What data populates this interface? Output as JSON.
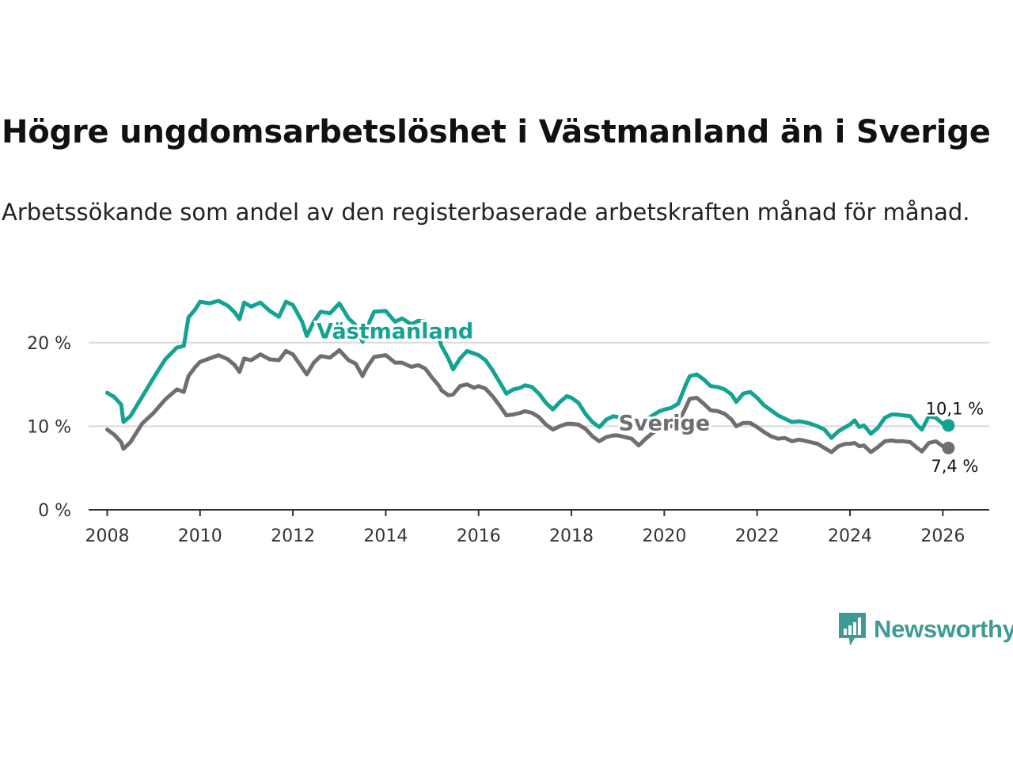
{
  "header": {
    "title": "Högre ungdomsarbetslöshet i Västmanland än i Sverige",
    "subtitle": "Arbetssökande som andel av den registerbaserade arbetskraften månad för månad."
  },
  "brand": {
    "name": "Newsworthy",
    "color": "#3e9a95"
  },
  "chart_data": {
    "type": "line",
    "title": "Högre ungdomsarbetslöshet i Västmanland än i Sverige",
    "subtitle": "Arbetssökande som andel av den registerbaserade arbetskraften månad för månad.",
    "xlabel": "",
    "ylabel": "",
    "xlim": [
      2007.6,
      2027.0
    ],
    "ylim": [
      0,
      25
    ],
    "x_ticks": [
      2008,
      2010,
      2012,
      2014,
      2016,
      2018,
      2020,
      2022,
      2024,
      2026
    ],
    "x_tick_labels": [
      "2008",
      "2010",
      "2012",
      "2014",
      "2016",
      "2018",
      "2020",
      "2022",
      "2024",
      "2026"
    ],
    "y_ticks": [
      0,
      10,
      20
    ],
    "y_tick_labels": [
      "0 %",
      "10 %",
      "20 %"
    ],
    "grid": "horizontal",
    "series": [
      {
        "name": "Västmanland",
        "color": "#12a393",
        "end_label": "10,1 %",
        "points": [
          [
            2008.0,
            14.0
          ],
          [
            2008.15,
            13.5
          ],
          [
            2008.3,
            12.6
          ],
          [
            2008.35,
            10.5
          ],
          [
            2008.5,
            11.2
          ],
          [
            2008.75,
            13.5
          ],
          [
            2009.0,
            15.8
          ],
          [
            2009.25,
            18.0
          ],
          [
            2009.5,
            19.4
          ],
          [
            2009.65,
            19.6
          ],
          [
            2009.75,
            23.0
          ],
          [
            2009.9,
            24.0
          ],
          [
            2010.0,
            24.9
          ],
          [
            2010.2,
            24.7
          ],
          [
            2010.4,
            25.0
          ],
          [
            2010.6,
            24.4
          ],
          [
            2010.75,
            23.6
          ],
          [
            2010.85,
            22.8
          ],
          [
            2010.95,
            24.8
          ],
          [
            2011.1,
            24.3
          ],
          [
            2011.3,
            24.8
          ],
          [
            2011.5,
            23.8
          ],
          [
            2011.7,
            23.1
          ],
          [
            2011.85,
            24.9
          ],
          [
            2012.0,
            24.5
          ],
          [
            2012.2,
            22.5
          ],
          [
            2012.3,
            20.8
          ],
          [
            2012.45,
            22.5
          ],
          [
            2012.6,
            23.7
          ],
          [
            2012.8,
            23.5
          ],
          [
            2013.0,
            24.7
          ],
          [
            2013.2,
            22.9
          ],
          [
            2013.35,
            22.1
          ],
          [
            2013.5,
            20.1
          ],
          [
            2013.6,
            21.9
          ],
          [
            2013.75,
            23.7
          ],
          [
            2014.0,
            23.8
          ],
          [
            2014.2,
            22.5
          ],
          [
            2014.35,
            22.9
          ],
          [
            2014.55,
            22.2
          ],
          [
            2014.7,
            22.6
          ],
          [
            2014.85,
            22.5
          ],
          [
            2015.0,
            21.2
          ],
          [
            2015.15,
            20.5
          ],
          [
            2015.2,
            19.6
          ],
          [
            2015.35,
            18.1
          ],
          [
            2015.45,
            16.8
          ],
          [
            2015.6,
            18.1
          ],
          [
            2015.75,
            19.0
          ],
          [
            2015.9,
            18.7
          ],
          [
            2016.0,
            18.5
          ],
          [
            2016.15,
            17.9
          ],
          [
            2016.3,
            16.7
          ],
          [
            2016.45,
            15.3
          ],
          [
            2016.6,
            13.9
          ],
          [
            2016.75,
            14.4
          ],
          [
            2016.9,
            14.6
          ],
          [
            2017.0,
            14.9
          ],
          [
            2017.15,
            14.7
          ],
          [
            2017.3,
            13.9
          ],
          [
            2017.45,
            12.8
          ],
          [
            2017.6,
            12.0
          ],
          [
            2017.75,
            12.9
          ],
          [
            2017.9,
            13.6
          ],
          [
            2018.0,
            13.4
          ],
          [
            2018.15,
            12.8
          ],
          [
            2018.3,
            11.5
          ],
          [
            2018.45,
            10.5
          ],
          [
            2018.6,
            9.9
          ],
          [
            2018.75,
            10.8
          ],
          [
            2018.9,
            11.2
          ],
          [
            2019.0,
            11.1
          ],
          [
            2019.15,
            10.8
          ],
          [
            2019.3,
            10.3
          ],
          [
            2019.45,
            10.0
          ],
          [
            2019.6,
            10.7
          ],
          [
            2019.75,
            11.3
          ],
          [
            2019.9,
            11.8
          ],
          [
            2020.0,
            12.0
          ],
          [
            2020.15,
            12.2
          ],
          [
            2020.3,
            12.7
          ],
          [
            2020.45,
            14.8
          ],
          [
            2020.55,
            16.0
          ],
          [
            2020.7,
            16.2
          ],
          [
            2020.85,
            15.6
          ],
          [
            2021.0,
            14.8
          ],
          [
            2021.15,
            14.7
          ],
          [
            2021.3,
            14.4
          ],
          [
            2021.45,
            13.8
          ],
          [
            2021.55,
            12.9
          ],
          [
            2021.7,
            13.9
          ],
          [
            2021.85,
            14.1
          ],
          [
            2022.0,
            13.4
          ],
          [
            2022.15,
            12.5
          ],
          [
            2022.3,
            11.9
          ],
          [
            2022.45,
            11.3
          ],
          [
            2022.6,
            10.9
          ],
          [
            2022.75,
            10.5
          ],
          [
            2022.9,
            10.6
          ],
          [
            2023.0,
            10.5
          ],
          [
            2023.15,
            10.3
          ],
          [
            2023.3,
            10.0
          ],
          [
            2023.45,
            9.6
          ],
          [
            2023.6,
            8.6
          ],
          [
            2023.75,
            9.4
          ],
          [
            2023.9,
            9.9
          ],
          [
            2024.0,
            10.2
          ],
          [
            2024.1,
            10.7
          ],
          [
            2024.2,
            9.9
          ],
          [
            2024.3,
            10.1
          ],
          [
            2024.45,
            9.1
          ],
          [
            2024.6,
            9.8
          ],
          [
            2024.75,
            11.0
          ],
          [
            2024.9,
            11.4
          ],
          [
            2025.0,
            11.4
          ],
          [
            2025.15,
            11.3
          ],
          [
            2025.3,
            11.2
          ],
          [
            2025.45,
            10.1
          ],
          [
            2025.55,
            9.6
          ],
          [
            2025.7,
            11.2
          ],
          [
            2025.85,
            11.0
          ],
          [
            2026.0,
            10.3
          ],
          [
            2026.12,
            10.1
          ]
        ]
      },
      {
        "name": "Sverige",
        "color": "#6f6e73",
        "end_label": "7,4 %",
        "points": [
          [
            2008.0,
            9.6
          ],
          [
            2008.15,
            9.0
          ],
          [
            2008.3,
            8.1
          ],
          [
            2008.35,
            7.3
          ],
          [
            2008.5,
            8.1
          ],
          [
            2008.75,
            10.3
          ],
          [
            2009.0,
            11.6
          ],
          [
            2009.25,
            13.2
          ],
          [
            2009.5,
            14.4
          ],
          [
            2009.65,
            14.1
          ],
          [
            2009.75,
            16.0
          ],
          [
            2009.9,
            17.1
          ],
          [
            2010.0,
            17.7
          ],
          [
            2010.2,
            18.1
          ],
          [
            2010.4,
            18.5
          ],
          [
            2010.6,
            18.0
          ],
          [
            2010.75,
            17.3
          ],
          [
            2010.85,
            16.5
          ],
          [
            2010.95,
            18.1
          ],
          [
            2011.1,
            17.9
          ],
          [
            2011.3,
            18.6
          ],
          [
            2011.5,
            18.0
          ],
          [
            2011.7,
            17.9
          ],
          [
            2011.85,
            19.0
          ],
          [
            2012.0,
            18.6
          ],
          [
            2012.2,
            17.0
          ],
          [
            2012.3,
            16.2
          ],
          [
            2012.45,
            17.6
          ],
          [
            2012.6,
            18.4
          ],
          [
            2012.8,
            18.2
          ],
          [
            2013.0,
            19.1
          ],
          [
            2013.2,
            17.9
          ],
          [
            2013.35,
            17.5
          ],
          [
            2013.5,
            16.0
          ],
          [
            2013.6,
            17.1
          ],
          [
            2013.75,
            18.3
          ],
          [
            2014.0,
            18.5
          ],
          [
            2014.2,
            17.6
          ],
          [
            2014.35,
            17.6
          ],
          [
            2014.55,
            17.1
          ],
          [
            2014.7,
            17.3
          ],
          [
            2014.85,
            16.9
          ],
          [
            2015.0,
            15.8
          ],
          [
            2015.15,
            14.8
          ],
          [
            2015.2,
            14.3
          ],
          [
            2015.35,
            13.7
          ],
          [
            2015.45,
            13.8
          ],
          [
            2015.6,
            14.8
          ],
          [
            2015.75,
            15.0
          ],
          [
            2015.9,
            14.6
          ],
          [
            2016.0,
            14.8
          ],
          [
            2016.15,
            14.5
          ],
          [
            2016.3,
            13.6
          ],
          [
            2016.45,
            12.5
          ],
          [
            2016.6,
            11.3
          ],
          [
            2016.75,
            11.4
          ],
          [
            2016.9,
            11.6
          ],
          [
            2017.0,
            11.8
          ],
          [
            2017.15,
            11.6
          ],
          [
            2017.3,
            11.1
          ],
          [
            2017.45,
            10.2
          ],
          [
            2017.6,
            9.6
          ],
          [
            2017.75,
            10.0
          ],
          [
            2017.9,
            10.3
          ],
          [
            2018.0,
            10.3
          ],
          [
            2018.15,
            10.2
          ],
          [
            2018.3,
            9.7
          ],
          [
            2018.45,
            8.8
          ],
          [
            2018.6,
            8.2
          ],
          [
            2018.75,
            8.7
          ],
          [
            2018.9,
            8.9
          ],
          [
            2019.0,
            8.9
          ],
          [
            2019.15,
            8.7
          ],
          [
            2019.3,
            8.5
          ],
          [
            2019.45,
            7.7
          ],
          [
            2019.6,
            8.5
          ],
          [
            2019.75,
            9.2
          ],
          [
            2019.9,
            9.6
          ],
          [
            2020.0,
            9.9
          ],
          [
            2020.15,
            10.0
          ],
          [
            2020.3,
            10.4
          ],
          [
            2020.45,
            12.1
          ],
          [
            2020.55,
            13.3
          ],
          [
            2020.7,
            13.4
          ],
          [
            2020.85,
            12.7
          ],
          [
            2021.0,
            11.9
          ],
          [
            2021.15,
            11.8
          ],
          [
            2021.3,
            11.5
          ],
          [
            2021.45,
            10.8
          ],
          [
            2021.55,
            10.0
          ],
          [
            2021.7,
            10.4
          ],
          [
            2021.85,
            10.4
          ],
          [
            2022.0,
            9.9
          ],
          [
            2022.15,
            9.3
          ],
          [
            2022.3,
            8.8
          ],
          [
            2022.45,
            8.5
          ],
          [
            2022.6,
            8.6
          ],
          [
            2022.75,
            8.2
          ],
          [
            2022.9,
            8.4
          ],
          [
            2023.0,
            8.3
          ],
          [
            2023.15,
            8.1
          ],
          [
            2023.3,
            7.9
          ],
          [
            2023.45,
            7.4
          ],
          [
            2023.6,
            6.9
          ],
          [
            2023.75,
            7.6
          ],
          [
            2023.9,
            7.9
          ],
          [
            2024.0,
            7.9
          ],
          [
            2024.1,
            8.0
          ],
          [
            2024.2,
            7.6
          ],
          [
            2024.3,
            7.7
          ],
          [
            2024.45,
            6.9
          ],
          [
            2024.6,
            7.5
          ],
          [
            2024.75,
            8.2
          ],
          [
            2024.9,
            8.3
          ],
          [
            2025.0,
            8.2
          ],
          [
            2025.15,
            8.2
          ],
          [
            2025.3,
            8.1
          ],
          [
            2025.45,
            7.4
          ],
          [
            2025.55,
            7.0
          ],
          [
            2025.7,
            8.0
          ],
          [
            2025.85,
            8.2
          ],
          [
            2026.0,
            7.6
          ],
          [
            2026.12,
            7.4
          ]
        ]
      }
    ],
    "annotations": [
      {
        "text": "Västmanland",
        "series": "Västmanland",
        "x": 2014.2,
        "y": 20.5
      },
      {
        "text": "Sverige",
        "series": "Sverige",
        "x": 2020.0,
        "y": 9.5
      }
    ]
  }
}
